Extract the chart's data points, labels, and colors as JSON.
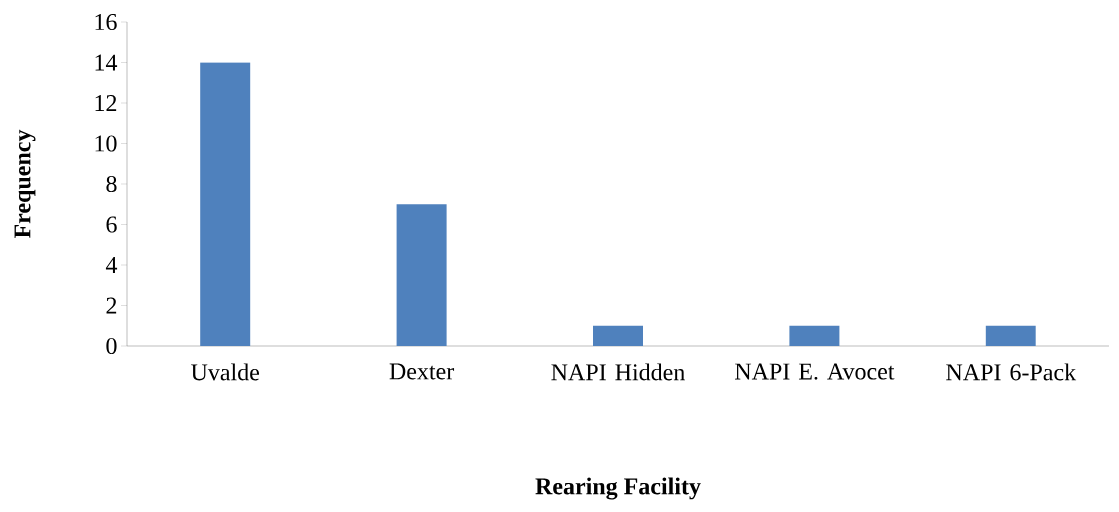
{
  "chart_data": {
    "type": "bar",
    "xlabel": "Rearing Facility",
    "ylabel": "Frequency",
    "categories": [
      "Uvalde",
      "Dexter",
      "NAPI Hidden",
      "NAPI E. Avocet",
      "NAPI 6-Pack"
    ],
    "values": [
      14,
      7,
      1,
      1,
      1
    ],
    "color": "#4f81bd",
    "ylim": [
      0,
      16
    ],
    "yticks": [
      0,
      2,
      4,
      6,
      8,
      10,
      12,
      14,
      16
    ]
  }
}
